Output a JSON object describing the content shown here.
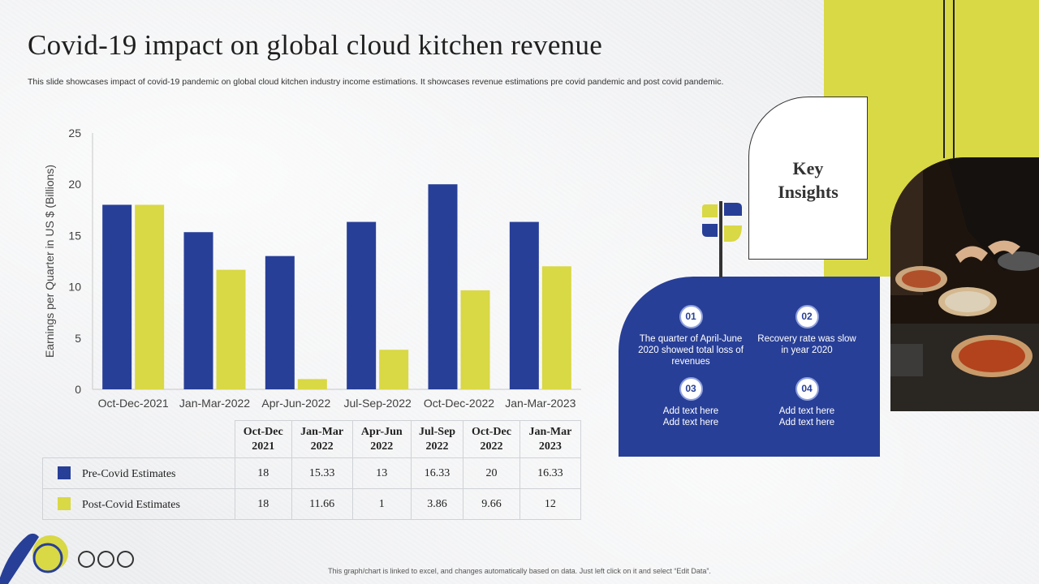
{
  "title": "Covid-19 impact on global cloud kitchen revenue",
  "subtitle": "This slide showcases impact of covid-19 pandemic on global cloud kitchen industry income estimations. It showcases revenue estimations  pre covid pandemic and post covid pandemic.",
  "colors": {
    "pre": "#283f97",
    "post": "#d9d845",
    "panel": "#283f97",
    "accent": "#d9d845"
  },
  "chart_data": {
    "type": "bar",
    "categories": [
      "Oct-Dec-2021",
      "Jan-Mar-2022",
      "Apr-Jun-2022",
      "Jul-Sep-2022",
      "Oct-Dec-2022",
      "Jan-Mar-2023"
    ],
    "series": [
      {
        "name": "Pre-Covid Estimates",
        "values": [
          18,
          15.33,
          13,
          16.33,
          20,
          16.33
        ]
      },
      {
        "name": "Post-Covid Estimates",
        "values": [
          18,
          11.66,
          1,
          3.86,
          9.66,
          12
        ]
      }
    ],
    "ylabel": "Earnings per Quarter in US $ (Billions)",
    "ylim": [
      0,
      25
    ],
    "yticks": [
      0,
      5,
      10,
      15,
      20,
      25
    ],
    "grid": false,
    "legend": "table-below"
  },
  "table": {
    "headers": [
      [
        "Oct-Dec",
        "2021"
      ],
      [
        "Jan-Mar",
        "2022"
      ],
      [
        "Apr-Jun",
        "2022"
      ],
      [
        "Jul-Sep",
        "2022"
      ],
      [
        "Oct-Dec",
        "2022"
      ],
      [
        "Jan-Mar",
        "2023"
      ]
    ],
    "rows": [
      {
        "label": "Pre-Covid Estimates",
        "values": [
          "18",
          "15.33",
          "13",
          "16.33",
          "20",
          "16.33"
        ]
      },
      {
        "label": "Post-Covid Estimates",
        "values": [
          "18",
          "11.66",
          "1",
          "3.86",
          "9.66",
          "12"
        ]
      }
    ]
  },
  "key_insights": {
    "title_line1": "Key",
    "title_line2": "Insights",
    "items": [
      {
        "num": "01",
        "text": "The quarter of April-June 2020 showed total loss of revenues"
      },
      {
        "num": "02",
        "text": "Recovery rate was slow in year 2020"
      },
      {
        "num": "03",
        "text": "Add text here Add text here"
      },
      {
        "num": "04",
        "text": "Add text here Add text here"
      }
    ]
  },
  "footer": "This graph/chart is linked to excel, and changes automatically based on data. Just left click on it and select “Edit Data”.",
  "icons": [
    "signpost-icon",
    "pizza-chef-photo",
    "decorative-circles"
  ]
}
